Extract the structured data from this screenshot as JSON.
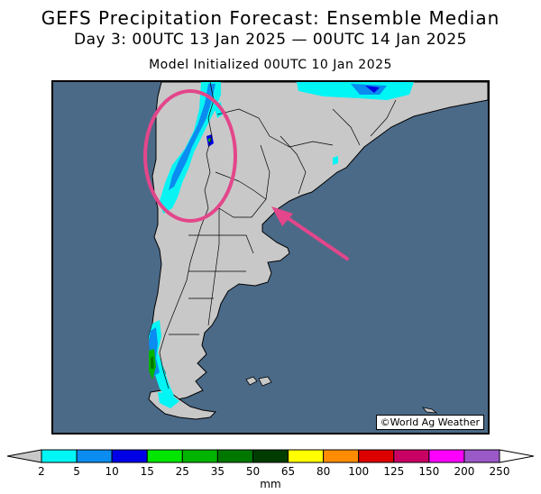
{
  "header": {
    "title": "GEFS Precipitation Forecast: Ensemble Median",
    "subtitle": "Day 3: 00UTC 13 Jan 2025 — 00UTC 14 Jan 2025",
    "init": "Model Initialized 00UTC 10 Jan 2025"
  },
  "map": {
    "credit": "©World Ag Weather",
    "ocean_color": "#4b6a88",
    "land_color": "#c8c8c8"
  },
  "legend": {
    "unit": "mm",
    "ticks": [
      "2",
      "5",
      "10",
      "15",
      "25",
      "35",
      "50",
      "65",
      "80",
      "100",
      "125",
      "150",
      "200",
      "250"
    ],
    "colors": [
      "#00f5f5",
      "#0a8cf0",
      "#0000e6",
      "#00e600",
      "#00b400",
      "#007800",
      "#003c00",
      "#ffff00",
      "#ff8c00",
      "#dc0000",
      "#c80064",
      "#ff00ff",
      "#9b59c8"
    ],
    "under_color": "#c8c8c8",
    "over_color": "#ffffff"
  }
}
